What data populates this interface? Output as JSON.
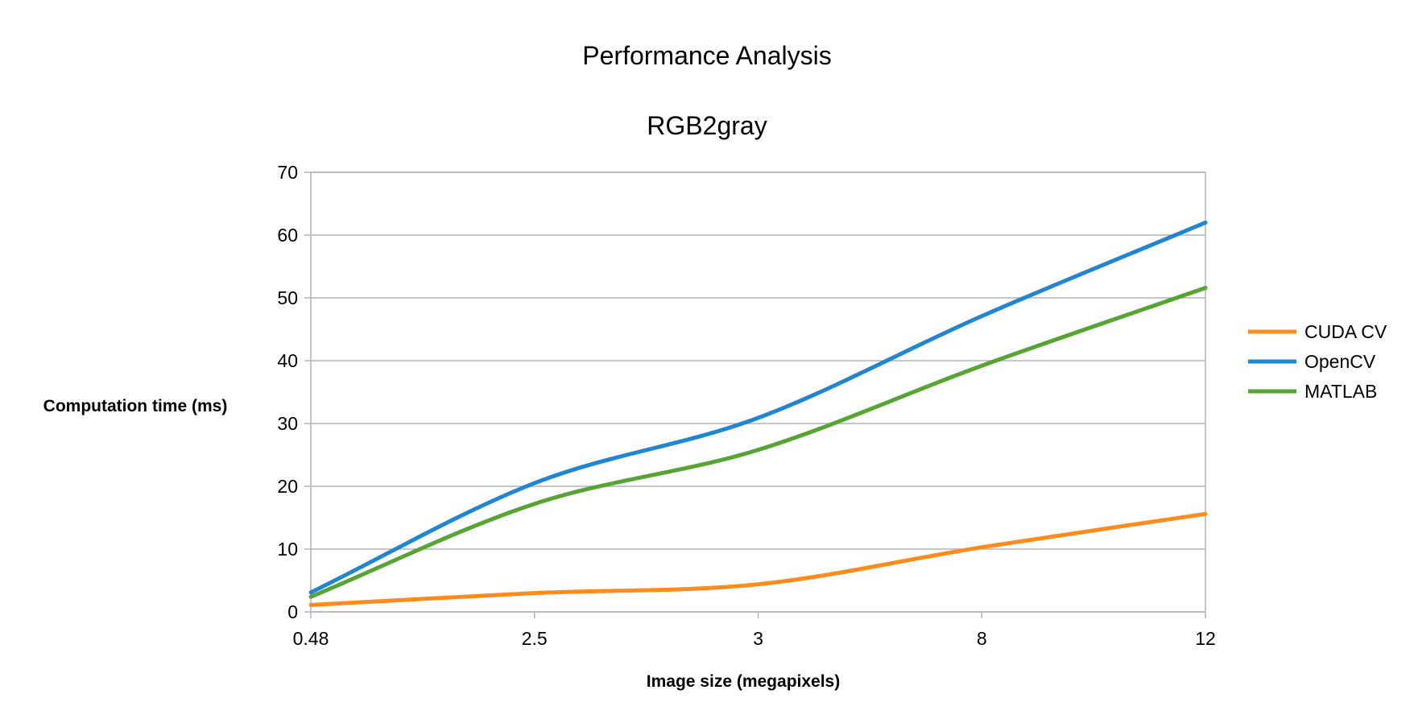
{
  "chart_data": {
    "type": "line",
    "title": "Performance Analysis",
    "subtitle": "RGB2gray",
    "xlabel": "Image size (megapixels)",
    "ylabel": "Computation time (ms)",
    "categories": [
      "0.48",
      "2.5",
      "3",
      "8",
      "12"
    ],
    "ylim": [
      0,
      70
    ],
    "yticks": [
      0,
      10,
      20,
      30,
      40,
      50,
      60,
      70
    ],
    "grid": true,
    "smooth": true,
    "legend_position": "right",
    "series": [
      {
        "name": "CUDA CV",
        "color": "#ff8c1a",
        "values": [
          1.1,
          3.0,
          4.4,
          10.3,
          15.6
        ]
      },
      {
        "name": "OpenCV",
        "color": "#1f86d3",
        "values": [
          3.1,
          20.5,
          30.9,
          47.1,
          62.0
        ]
      },
      {
        "name": "MATLAB",
        "color": "#56a532",
        "values": [
          2.4,
          17.2,
          25.8,
          39.2,
          51.6
        ]
      }
    ]
  }
}
